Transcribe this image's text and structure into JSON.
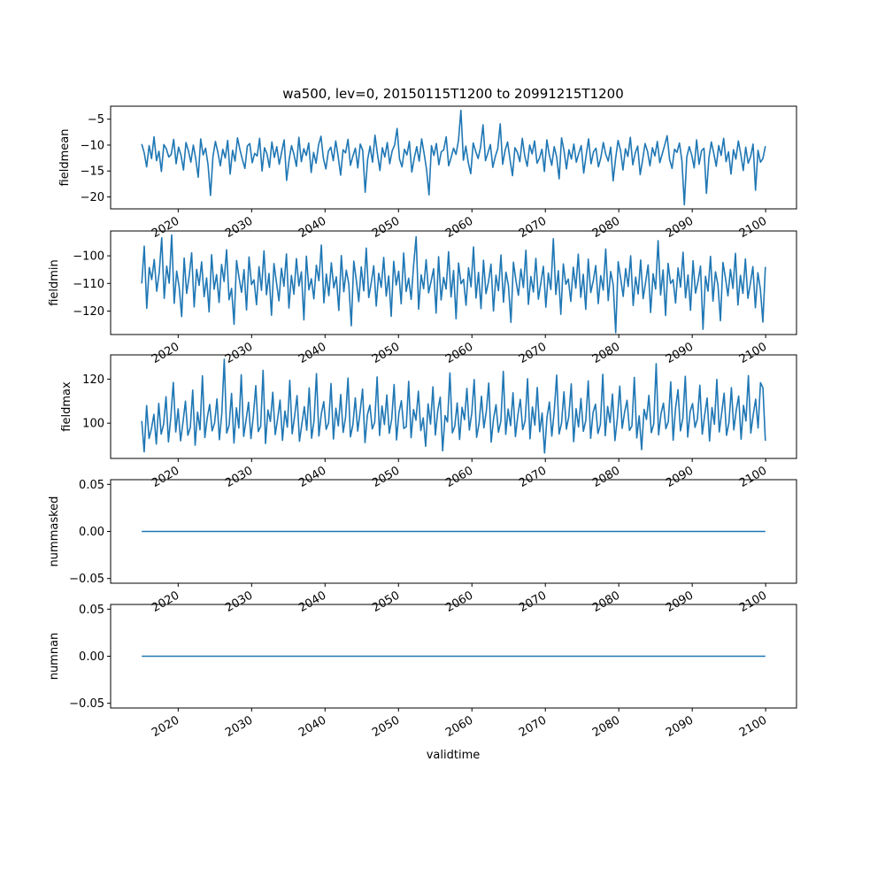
{
  "chart_data": [
    {
      "type": "line",
      "title": "wa500, lev=0, 20150115T1200 to 20991215T1200",
      "ylabel": "fieldmean",
      "xlabel": "",
      "xlim": [
        2010.8,
        2104.2
      ],
      "ylim": [
        -22.3,
        -2.5
      ],
      "yticks": [
        -20,
        -15,
        -10,
        -5
      ],
      "xticks": [
        2020,
        2030,
        2040,
        2050,
        2060,
        2070,
        2080,
        2090,
        2100
      ],
      "xtick_labels": [
        "2020",
        "2030",
        "2040",
        "2050",
        "2060",
        "2070",
        "2080",
        "2090",
        "2100"
      ],
      "x_start": 2015.04,
      "x_end": 2099.96,
      "grid": false,
      "series": [
        {
          "color": "#1f77b4",
          "values": [
            -9.8,
            -11.5,
            -14.2,
            -10.1,
            -12.6,
            -8.4,
            -13.0,
            -11.2,
            -15.1,
            -9.9,
            -10.7,
            -12.3,
            -11.8,
            -8.9,
            -13.6,
            -10.4,
            -12.0,
            -14.8,
            -9.5,
            -11.1,
            -13.3,
            -10.0,
            -12.7,
            -16.2,
            -8.8,
            -11.9,
            -10.6,
            -13.8,
            -19.7,
            -12.2,
            -9.3,
            -11.4,
            -14.0,
            -10.8,
            -12.5,
            -9.1,
            -15.6,
            -11.0,
            -13.1,
            -8.6,
            -10.9,
            -12.8,
            -14.5,
            -10.2,
            -9.7,
            -13.4,
            -11.6,
            -12.1,
            -8.7,
            -15.0,
            -10.5,
            -11.7,
            -14.3,
            -9.4,
            -12.4,
            -10.3,
            -13.7,
            -11.3,
            -9.0,
            -16.8,
            -12.9,
            -10.1,
            -11.8,
            -14.1,
            -8.5,
            -13.2,
            -10.7,
            -12.0,
            -9.6,
            -15.3,
            -11.4,
            -13.5,
            -10.0,
            -8.3,
            -12.6,
            -14.6,
            -11.2,
            -10.4,
            -13.0,
            -9.2,
            -12.2,
            -15.8,
            -10.9,
            -11.5,
            -8.9,
            -13.9,
            -12.1,
            -10.6,
            -14.4,
            -9.8,
            -11.0,
            -19.1,
            -12.8,
            -10.2,
            -13.3,
            -8.1,
            -11.7,
            -14.9,
            -10.5,
            -12.3,
            -9.5,
            -13.6,
            -11.1,
            -10.0,
            -6.8,
            -12.7,
            -14.2,
            -10.8,
            -11.9,
            -9.3,
            -15.2,
            -12.5,
            -10.3,
            -13.1,
            -8.8,
            -11.6,
            -14.7,
            -19.6,
            -10.1,
            -12.0,
            -9.7,
            -13.8,
            -11.3,
            -10.9,
            -8.4,
            -14.0,
            -12.4,
            -10.6,
            -11.8,
            -9.1,
            -3.3,
            -12.9,
            -10.2,
            -13.4,
            -15.5,
            -9.6,
            -11.2,
            -12.6,
            -10.4,
            -6.1,
            -13.0,
            -11.5,
            -9.9,
            -14.3,
            -12.2,
            -10.7,
            -5.9,
            -13.7,
            -11.0,
            -9.4,
            -12.8,
            -15.9,
            -10.5,
            -11.4,
            -13.2,
            -8.7,
            -12.1,
            -14.1,
            -10.0,
            -11.7,
            -9.2,
            -13.5,
            -12.5,
            -10.8,
            -15.1,
            -9.0,
            -11.9,
            -13.9,
            -10.3,
            -12.3,
            -16.5,
            -8.6,
            -11.1,
            -14.6,
            -10.9,
            -12.7,
            -9.8,
            -13.3,
            -11.6,
            -10.1,
            -15.4,
            -12.0,
            -8.8,
            -13.6,
            -11.3,
            -10.6,
            -14.2,
            -12.4,
            -9.5,
            -11.8,
            -13.1,
            -10.4,
            -16.9,
            -12.6,
            -9.1,
            -11.0,
            -14.8,
            -10.7,
            -12.2,
            -8.5,
            -13.8,
            -11.5,
            -10.2,
            -15.7,
            -12.9,
            -9.7,
            -11.2,
            -14.0,
            -10.5,
            -12.1,
            -9.3,
            -13.4,
            -11.7,
            -10.0,
            -8.2,
            -12.8,
            -14.5,
            -10.8,
            -11.4,
            -9.6,
            -13.0,
            -21.5,
            -12.3,
            -10.3,
            -11.9,
            -14.4,
            -9.0,
            -13.7,
            -11.1,
            -10.6,
            -19.3,
            -12.5,
            -9.4,
            -11.6,
            -14.1,
            -10.1,
            -12.0,
            -8.7,
            -13.2,
            -11.3,
            -15.6,
            -10.9,
            -12.7,
            -9.2,
            -11.8,
            -14.9,
            -10.4,
            -13.5,
            -12.2,
            -9.8,
            -18.7,
            -11.0,
            -13.3,
            -12.6,
            -10.2
          ]
        }
      ]
    },
    {
      "type": "line",
      "title": "",
      "ylabel": "fieldmin",
      "xlabel": "",
      "xlim": [
        2010.8,
        2104.2
      ],
      "ylim": [
        -128.5,
        -91.0
      ],
      "yticks": [
        -120,
        -110,
        -100
      ],
      "xticks": [
        2020,
        2030,
        2040,
        2050,
        2060,
        2070,
        2080,
        2090,
        2100
      ],
      "xtick_labels": [
        "2020",
        "2030",
        "2040",
        "2050",
        "2060",
        "2070",
        "2080",
        "2090",
        "2100"
      ],
      "x_start": 2015.04,
      "x_end": 2099.96,
      "grid": false,
      "series": [
        {
          "color": "#1f77b4",
          "values": [
            -110.0,
            -96.5,
            -119.0,
            -104.2,
            -108.6,
            -101.3,
            -112.8,
            -106.1,
            -93.5,
            -115.4,
            -103.7,
            -109.9,
            -92.4,
            -117.2,
            -105.5,
            -111.3,
            -122.0,
            -100.8,
            -113.6,
            -107.4,
            -98.9,
            -118.5,
            -104.9,
            -110.7,
            -102.2,
            -114.8,
            -108.0,
            -120.3,
            -99.6,
            -112.1,
            -106.8,
            -116.9,
            -103.1,
            -109.3,
            -97.8,
            -115.9,
            -111.8,
            -124.8,
            -101.7,
            -107.9,
            -113.2,
            -105.0,
            -119.6,
            -100.4,
            -110.4,
            -108.7,
            -117.7,
            -103.9,
            -112.5,
            -98.2,
            -114.1,
            -106.4,
            -121.5,
            -102.8,
            -109.6,
            -116.3,
            -104.5,
            -111.0,
            -99.3,
            -118.9,
            -107.1,
            -113.9,
            -101.0,
            -110.9,
            -105.8,
            -123.2,
            -100.1,
            -112.3,
            -108.3,
            -115.6,
            -103.4,
            -109.0,
            -96.1,
            -117.0,
            -106.6,
            -114.4,
            -102.5,
            -111.6,
            -107.6,
            -119.8,
            -99.9,
            -113.0,
            -105.2,
            -110.2,
            -125.3,
            -101.9,
            -108.8,
            -116.6,
            -104.0,
            -112.7,
            -97.2,
            -115.1,
            -109.7,
            -103.6,
            -118.2,
            -106.3,
            -111.4,
            -100.6,
            -114.6,
            -107.3,
            -121.9,
            -102.0,
            -110.6,
            -105.6,
            -117.4,
            -99.0,
            -112.9,
            -108.1,
            -115.8,
            -103.2,
            -93.1,
            -119.3,
            -106.9,
            -111.9,
            -101.4,
            -113.4,
            -109.2,
            -104.7,
            -120.7,
            -100.3,
            -116.0,
            -107.8,
            -112.0,
            -98.5,
            -114.9,
            -105.3,
            -122.8,
            -102.6,
            -110.1,
            -108.5,
            -117.9,
            -104.3,
            -111.2,
            -96.8,
            -115.3,
            -106.0,
            -119.1,
            -101.6,
            -113.7,
            -109.4,
            -103.0,
            -120.0,
            -107.0,
            -112.6,
            -99.7,
            -116.8,
            -105.9,
            -110.8,
            -124.1,
            -102.3,
            -108.9,
            -114.3,
            -104.8,
            -111.5,
            -98.0,
            -117.6,
            -107.5,
            -113.1,
            -100.9,
            -115.7,
            -109.8,
            -103.8,
            -118.6,
            -106.2,
            -112.2,
            -93.8,
            -114.0,
            -105.4,
            -121.2,
            -102.9,
            -110.3,
            -108.4,
            -116.5,
            -104.1,
            -111.7,
            -99.4,
            -115.0,
            -106.7,
            -119.4,
            -101.2,
            -113.3,
            -109.1,
            -103.5,
            -117.3,
            -107.2,
            -112.4,
            -97.5,
            -116.2,
            -105.7,
            -110.5,
            -127.8,
            -102.1,
            -108.2,
            -114.7,
            -104.6,
            -111.1,
            -100.0,
            -118.0,
            -107.7,
            -113.8,
            -101.5,
            -115.5,
            -109.5,
            -103.3,
            -120.5,
            -106.5,
            -112.0,
            -94.5,
            -114.2,
            -105.1,
            -121.6,
            -102.7,
            -110.0,
            -108.6,
            -117.1,
            -104.4,
            -111.3,
            -98.7,
            -115.2,
            -106.9,
            -119.7,
            -101.8,
            -113.5,
            -109.3,
            -103.7,
            -126.6,
            -107.4,
            -112.8,
            -100.2,
            -116.4,
            -105.8,
            -110.6,
            -123.5,
            -102.4,
            -108.0,
            -114.5,
            -104.9,
            -111.8,
            -99.1,
            -117.8,
            -107.1,
            -113.6,
            -101.1,
            -115.4,
            -109.9,
            -103.9,
            -118.8,
            -106.1,
            -112.1,
            -124.0,
            -104.0
          ]
        }
      ]
    },
    {
      "type": "line",
      "title": "",
      "ylabel": "fieldmax",
      "xlabel": "",
      "xlim": [
        2010.8,
        2104.2
      ],
      "ylim": [
        84.0,
        131.0
      ],
      "yticks": [
        100,
        120
      ],
      "xticks": [
        2020,
        2030,
        2040,
        2050,
        2060,
        2070,
        2080,
        2090,
        2100
      ],
      "xtick_labels": [
        "2020",
        "2030",
        "2040",
        "2050",
        "2060",
        "2070",
        "2080",
        "2090",
        "2100"
      ],
      "x_start": 2015.04,
      "x_end": 2099.96,
      "grid": false,
      "series": [
        {
          "color": "#1f77b4",
          "values": [
            101.0,
            87.0,
            108.0,
            93.0,
            97.5,
            104.0,
            90.5,
            109.0,
            95.0,
            99.5,
            112.0,
            91.5,
            103.0,
            118.5,
            96.0,
            106.5,
            92.0,
            100.5,
            110.0,
            94.5,
            98.0,
            115.0,
            90.0,
            105.0,
            97.0,
            121.5,
            93.5,
            102.5,
            108.5,
            96.5,
            100.0,
            111.0,
            92.5,
            104.5,
            129.0,
            95.5,
            99.0,
            113.5,
            91.0,
            107.0,
            97.8,
            122.0,
            94.0,
            101.5,
            109.5,
            93.0,
            103.5,
            117.0,
            96.2,
            98.5,
            124.0,
            90.8,
            106.0,
            100.8,
            114.0,
            94.8,
            102.0,
            110.5,
            92.2,
            105.5,
            98.2,
            119.5,
            95.2,
            103.2,
            112.5,
            91.8,
            99.8,
            107.5,
            96.8,
            116.0,
            93.2,
            101.2,
            122.5,
            94.2,
            104.2,
            109.8,
            97.2,
            100.2,
            118.0,
            92.8,
            106.8,
            98.8,
            113.0,
            95.8,
            102.8,
            120.5,
            93.8,
            99.2,
            111.5,
            96.4,
            105.2,
            115.5,
            91.2,
            103.8,
            108.2,
            97.4,
            100.4,
            121.0,
            94.4,
            107.8,
            99.4,
            112.8,
            95.4,
            101.8,
            117.5,
            92.4,
            104.8,
            110.2,
            97.6,
            98.4,
            119.0,
            93.4,
            106.2,
            101.4,
            114.5,
            96.6,
            102.4,
            89.5,
            108.8,
            99.6,
            116.5,
            94.6,
            105.8,
            111.8,
            87.5,
            103.4,
            100.6,
            122.8,
            95.6,
            98.6,
            109.2,
            92.6,
            107.2,
            101.6,
            115.8,
            96.9,
            104.4,
            119.8,
            93.6,
            99.9,
            112.2,
            97.9,
            105.4,
            118.2,
            91.4,
            102.2,
            108.4,
            95.9,
            100.9,
            123.5,
            94.9,
            106.4,
            98.9,
            113.8,
            93.9,
            103.6,
            110.8,
            97.1,
            101.1,
            120.2,
            92.9,
            107.4,
            99.1,
            116.2,
            96.1,
            104.6,
            86.5,
            102.6,
            109.6,
            94.1,
            105.6,
            121.8,
            95.1,
            100.1,
            114.2,
            97.3,
            103.1,
            117.8,
            91.6,
            106.6,
            98.3,
            111.2,
            96.3,
            101.3,
            119.2,
            93.1,
            104.9,
            108.6,
            95.3,
            99.3,
            122.2,
            94.3,
            107.6,
            100.3,
            113.2,
            92.1,
            102.1,
            116.8,
            97.7,
            105.1,
            110.4,
            96.7,
            98.7,
            120.8,
            93.3,
            103.3,
            88.0,
            106.3,
            101.7,
            112.6,
            95.7,
            99.7,
            127.0,
            94.7,
            104.3,
            109.1,
            97.5,
            100.7,
            118.8,
            92.3,
            106.9,
            115.2,
            96.5,
            102.3,
            121.3,
            93.7,
            105.3,
            108.9,
            98.1,
            101.9,
            117.2,
            95.0,
            103.7,
            111.4,
            91.9,
            107.1,
            99.5,
            119.9,
            96.0,
            104.7,
            113.6,
            94.5,
            100.5,
            116.1,
            97.0,
            105.9,
            112.3,
            92.7,
            108.1,
            101.0,
            121.6,
            95.5,
            103.9,
            110.9,
            97.8,
            118.4,
            116.0,
            92.0
          ]
        }
      ]
    },
    {
      "type": "line",
      "title": "",
      "ylabel": "nummasked",
      "xlabel": "",
      "xlim": [
        2010.8,
        2104.2
      ],
      "ylim": [
        -0.055,
        0.055
      ],
      "yticks": [
        -0.05,
        0.0,
        0.05
      ],
      "ytick_labels": [
        "−0.05",
        "0.00",
        "0.05"
      ],
      "xticks": [
        2020,
        2030,
        2040,
        2050,
        2060,
        2070,
        2080,
        2090,
        2100
      ],
      "xtick_labels": [
        "2020",
        "2030",
        "2040",
        "2050",
        "2060",
        "2070",
        "2080",
        "2090",
        "2100"
      ],
      "x_start": 2015.04,
      "x_end": 2099.96,
      "grid": false,
      "series": [
        {
          "color": "#1f77b4",
          "values": [
            0,
            0
          ]
        }
      ]
    },
    {
      "type": "line",
      "title": "",
      "ylabel": "numnan",
      "xlabel": "validtime",
      "xlim": [
        2010.8,
        2104.2
      ],
      "ylim": [
        -0.055,
        0.055
      ],
      "yticks": [
        -0.05,
        0.0,
        0.05
      ],
      "ytick_labels": [
        "−0.05",
        "0.00",
        "0.05"
      ],
      "xticks": [
        2020,
        2030,
        2040,
        2050,
        2060,
        2070,
        2080,
        2090,
        2100
      ],
      "xtick_labels": [
        "2020",
        "2030",
        "2040",
        "2050",
        "2060",
        "2070",
        "2080",
        "2090",
        "2100"
      ],
      "x_start": 2015.04,
      "x_end": 2099.96,
      "grid": false,
      "series": [
        {
          "color": "#1f77b4",
          "values": [
            0,
            0
          ]
        }
      ]
    }
  ]
}
